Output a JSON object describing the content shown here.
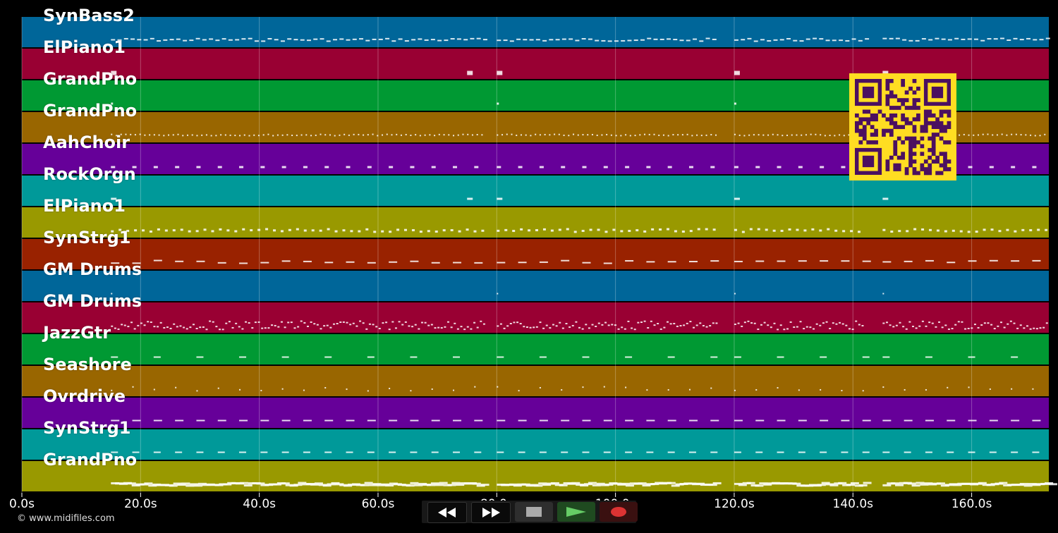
{
  "tracks": [
    {
      "name": "SynBass2",
      "color": "#006699"
    },
    {
      "name": "ElPiano1",
      "color": "#990033"
    },
    {
      "name": "GrandPno",
      "color": "#009933"
    },
    {
      "name": "GrandPno",
      "color": "#996600"
    },
    {
      "name": "AahChoir",
      "color": "#660099"
    },
    {
      "name": "RockOrgn",
      "color": "#009999"
    },
    {
      "name": "ElPiano1",
      "color": "#999900"
    },
    {
      "name": "SynStrg1",
      "color": "#992200"
    },
    {
      "name": "GM Drums",
      "color": "#006699"
    },
    {
      "name": "GM Drums",
      "color": "#990033"
    },
    {
      "name": "JazzGtr",
      "color": "#009933"
    },
    {
      "name": "Seashore",
      "color": "#996600"
    },
    {
      "name": "Ovrdrive",
      "color": "#660099"
    },
    {
      "name": "SynStrg1",
      "color": "#009999"
    },
    {
      "name": "GrandPno",
      "color": "#999900"
    }
  ],
  "timeline": {
    "ticks": [
      "0.0s",
      "20.0s",
      "40.0s",
      "60.0s",
      "80.0s",
      "100.0s",
      "120.0s",
      "140.0s",
      "160.0s"
    ],
    "tick_seconds": [
      0,
      20,
      40,
      60,
      80,
      100,
      120,
      140,
      160
    ],
    "duration_seconds": 173
  },
  "credit": "© www.midifiles.com",
  "controls": {
    "rewind": "rewind-icon",
    "fast_forward": "fast-forward-icon",
    "stop": "stop-icon",
    "play": "play-icon",
    "record": "record-icon"
  },
  "qr_color": "#ffdd22"
}
